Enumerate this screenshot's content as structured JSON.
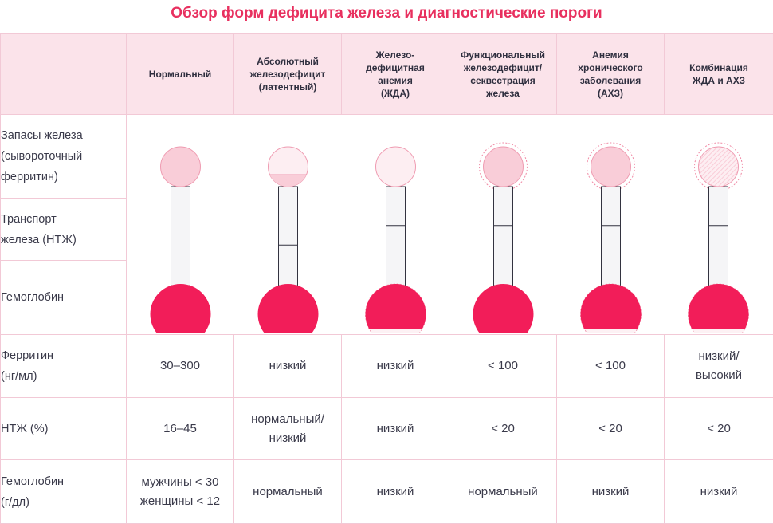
{
  "title": "Обзор форм дефицита железа и диагностические пороги",
  "columns": [
    {
      "lines": [
        "Нормальный"
      ]
    },
    {
      "lines": [
        "Абсолютный",
        "железодефицит",
        "(латентный)"
      ]
    },
    {
      "lines": [
        "Железо-",
        "дефицитная",
        "анемия",
        "(ЖДА)"
      ]
    },
    {
      "lines": [
        "Функциональный",
        "железодефицит/",
        "секвестрация",
        "железа"
      ]
    },
    {
      "lines": [
        "Анемия",
        "хронического",
        "заболевания",
        "(АХЗ)"
      ]
    },
    {
      "lines": [
        "Комбинация",
        "ЖДА и АХЗ"
      ]
    }
  ],
  "diagram_rows": [
    {
      "lines": [
        "Запасы железа",
        "(сывороточный",
        "ферритин)"
      ]
    },
    {
      "lines": [
        "Транспорт",
        "железа (НТЖ)"
      ]
    },
    {
      "lines": [
        "Гемоглобин"
      ]
    }
  ],
  "value_rows": [
    {
      "label": [
        "Ферритин",
        "(нг/мл)"
      ],
      "values": [
        [
          "30–300"
        ],
        [
          "низкий"
        ],
        [
          "низкий"
        ],
        [
          "< 100"
        ],
        [
          "< 100"
        ],
        [
          "низкий/",
          "высокий"
        ]
      ]
    },
    {
      "label": [
        "НТЖ (%)"
      ],
      "values": [
        [
          "16–45"
        ],
        [
          "нормальный/",
          "низкий"
        ],
        [
          "низкий"
        ],
        [
          "< 20"
        ],
        [
          "< 20"
        ],
        [
          "< 20"
        ]
      ]
    },
    {
      "label": [
        "Гемоглобин",
        "(г/дл)"
      ],
      "values": [
        [
          "мужчины < 30",
          "женщины < 12"
        ],
        [
          "нормальный"
        ],
        [
          "низкий"
        ],
        [
          "нормальный"
        ],
        [
          "низкий"
        ],
        [
          "низкий"
        ]
      ]
    }
  ],
  "diagram_states": [
    {
      "stores_fill": 1.0,
      "stores_shade": "medium",
      "stores_ring": false,
      "stores_hatch": false,
      "transport_level": 1.0,
      "hemoglobin_fill": 1.0
    },
    {
      "stores_fill": 0.3,
      "stores_shade": "medium",
      "stores_ring": false,
      "stores_hatch": false,
      "transport_level": 0.4,
      "hemoglobin_fill": 1.0
    },
    {
      "stores_fill": 1.0,
      "stores_shade": "pale",
      "stores_ring": false,
      "stores_hatch": false,
      "transport_level": 0.6,
      "hemoglobin_fill": 0.75
    },
    {
      "stores_fill": 1.0,
      "stores_shade": "medium",
      "stores_ring": true,
      "stores_hatch": false,
      "transport_level": 0.6,
      "hemoglobin_fill": 1.0
    },
    {
      "stores_fill": 1.0,
      "stores_shade": "medium",
      "stores_ring": true,
      "stores_hatch": false,
      "transport_level": 0.6,
      "hemoglobin_fill": 0.75
    },
    {
      "stores_fill": 1.0,
      "stores_shade": "hatched",
      "stores_ring": true,
      "stores_hatch": true,
      "transport_level": 0.6,
      "hemoglobin_fill": 0.75
    }
  ],
  "colors": {
    "title": "#e8305f",
    "header_bg": "#fbe3ea",
    "grid": "#f2c9d6",
    "hemoglobin": "#f21d59",
    "stores_medium": "#f9cdd8",
    "stores_pale": "#fdeef2",
    "stores_outline": "#ef9bb1",
    "tube_fill": "#f5f5f7",
    "tube_stroke": "#333340",
    "ring": "#f08aa5"
  }
}
